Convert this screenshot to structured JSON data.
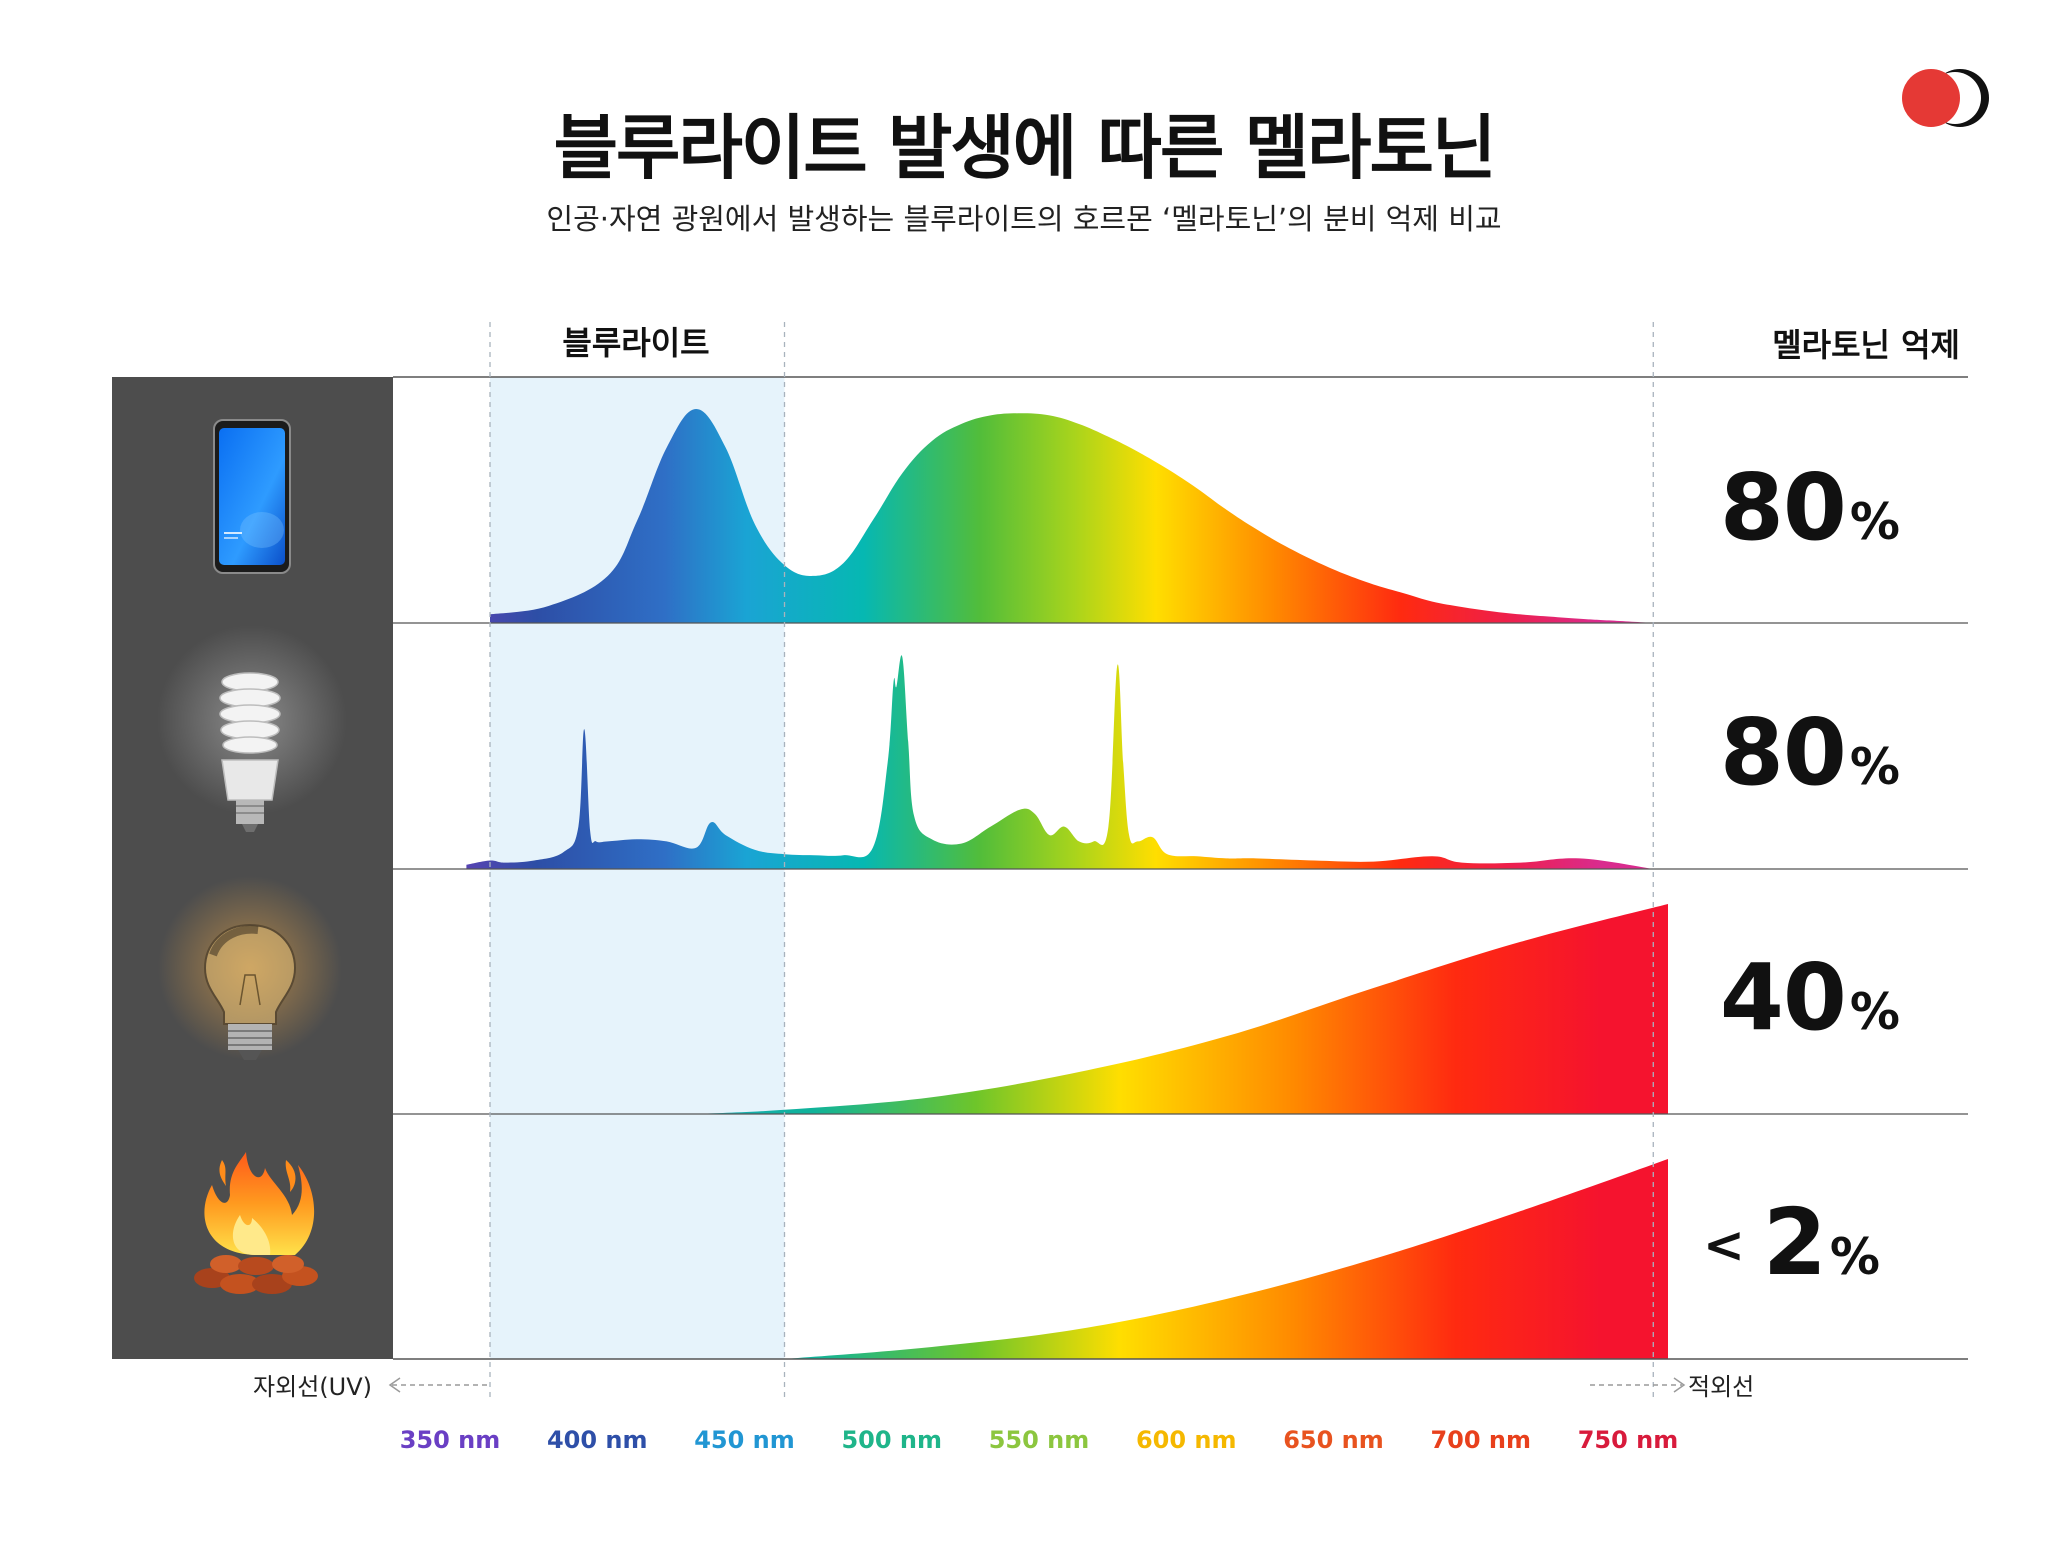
{
  "header": {
    "title": "블루라이트 발생에 따른 멜라토닌",
    "subtitle": "인공·자연 광원에서 발생하는 블루라이트의 호르몬 ‘멜라토닌’의 분비 억제 비교"
  },
  "column_headers": {
    "blue_light": "블루라이트",
    "melatonin_suppression": "멜라토닌 억제"
  },
  "axis": {
    "uv_label": "자외선(UV)",
    "ir_label": "적외선"
  },
  "colors": {
    "logo_red": "#e53935",
    "logo_dark": "#111111",
    "icon_panel": "#4d4d4d",
    "blue_band": "#e6f3fb"
  },
  "sources": [
    {
      "icon": "smartphone-icon",
      "suppression_value": "80",
      "prefix": "",
      "unit": "%"
    },
    {
      "icon": "cfl-bulb-icon",
      "suppression_value": "80",
      "prefix": "",
      "unit": "%"
    },
    {
      "icon": "incandescent-bulb-icon",
      "suppression_value": "40",
      "prefix": "",
      "unit": "%"
    },
    {
      "icon": "campfire-icon",
      "suppression_value": "2",
      "prefix": "<",
      "unit": "%"
    }
  ],
  "chart_data": {
    "type": "area",
    "x_unit": "nm",
    "xlim": [
      330,
      760
    ],
    "ylim": [
      0,
      1
    ],
    "x_ticks": [
      {
        "value": 350,
        "label": "350 nm",
        "color": "#6a3fc4"
      },
      {
        "value": 400,
        "label": "400 nm",
        "color": "#2e4fa8"
      },
      {
        "value": 450,
        "label": "450 nm",
        "color": "#2196d3"
      },
      {
        "value": 500,
        "label": "500 nm",
        "color": "#1fb58a"
      },
      {
        "value": 550,
        "label": "550 nm",
        "color": "#8cc63f"
      },
      {
        "value": 600,
        "label": "600 nm",
        "color": "#f5b800"
      },
      {
        "value": 650,
        "label": "650 nm",
        "color": "#e8531f"
      },
      {
        "value": 700,
        "label": "700 nm",
        "color": "#e8401c"
      },
      {
        "value": 750,
        "label": "750 nm",
        "color": "#d81b3c"
      }
    ],
    "blue_light_band": [
      350,
      450
    ],
    "reference_lines": [
      350,
      450,
      745
    ],
    "series": [
      {
        "source": "smartphone",
        "x": [
          350,
          370,
          390,
          400,
          410,
          420,
          430,
          440,
          450,
          460,
          470,
          480,
          490,
          500,
          510,
          520,
          530,
          540,
          550,
          560,
          570,
          580,
          590,
          600,
          610,
          620,
          630,
          640,
          650,
          660,
          670,
          680,
          690,
          700,
          710,
          720,
          730,
          745
        ],
        "y": [
          0.04,
          0.08,
          0.22,
          0.48,
          0.82,
          1.0,
          0.82,
          0.46,
          0.27,
          0.22,
          0.28,
          0.48,
          0.7,
          0.85,
          0.93,
          0.97,
          0.98,
          0.97,
          0.93,
          0.87,
          0.8,
          0.72,
          0.63,
          0.53,
          0.44,
          0.36,
          0.29,
          0.23,
          0.18,
          0.14,
          0.1,
          0.075,
          0.055,
          0.04,
          0.03,
          0.02,
          0.012,
          0.0
        ]
      },
      {
        "source": "cfl",
        "x": [
          342,
          350,
          355,
          365,
          375,
          380,
          382,
          384,
          386,
          390,
          400,
          410,
          420,
          425,
          430,
          440,
          450,
          460,
          470,
          480,
          485,
          487,
          488,
          490,
          492,
          494,
          500,
          510,
          520,
          530,
          535,
          540,
          545,
          550,
          555,
          560,
          563,
          565,
          567,
          570,
          575,
          580,
          590,
          600,
          610,
          630,
          650,
          670,
          680,
          700,
          720,
          745
        ],
        "y": [
          0.02,
          0.04,
          0.03,
          0.04,
          0.08,
          0.2,
          0.66,
          0.18,
          0.13,
          0.13,
          0.14,
          0.13,
          0.1,
          0.22,
          0.16,
          0.09,
          0.07,
          0.065,
          0.065,
          0.1,
          0.5,
          0.88,
          0.86,
          1.0,
          0.6,
          0.25,
          0.14,
          0.12,
          0.2,
          0.28,
          0.26,
          0.16,
          0.2,
          0.13,
          0.13,
          0.2,
          0.96,
          0.5,
          0.16,
          0.13,
          0.15,
          0.07,
          0.06,
          0.05,
          0.05,
          0.04,
          0.035,
          0.06,
          0.03,
          0.03,
          0.05,
          0.0
        ]
      },
      {
        "source": "incandescent",
        "x": [
          420,
          450,
          500,
          550,
          600,
          650,
          700,
          750
        ],
        "y": [
          0.0,
          0.02,
          0.08,
          0.2,
          0.37,
          0.6,
          0.82,
          1.0
        ]
      },
      {
        "source": "fire",
        "x": [
          450,
          500,
          550,
          600,
          650,
          700,
          750
        ],
        "y": [
          0.0,
          0.06,
          0.15,
          0.3,
          0.5,
          0.74,
          1.0
        ]
      }
    ]
  }
}
